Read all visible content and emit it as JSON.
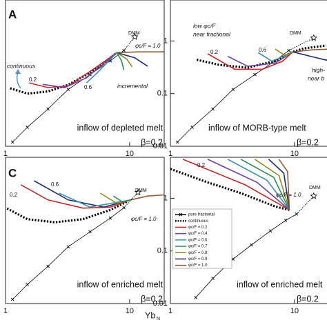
{
  "chart_data": [
    {
      "type": "line",
      "xlog": true,
      "ylog": true,
      "xlim": [
        1,
        19
      ],
      "ylim": [
        0.01,
        6
      ],
      "xticks": [
        1,
        10
      ],
      "annotations": [
        "A",
        "continuous",
        "0.2",
        "0.6",
        "incremental",
        "DMM",
        "φc/F = 1.0",
        "inflow of depleted melt",
        "β=0.2"
      ],
      "dmm": {
        "x": 11,
        "y": 1.2
      },
      "series": [
        {
          "color": "#000000",
          "marker": "x",
          "x": [
            1.14,
            1.5,
            2.2,
            3.2,
            4.8,
            7.0,
            9.0
          ],
          "values": [
            0.012,
            0.023,
            0.051,
            0.12,
            0.23,
            0.42,
            0.66
          ]
        },
        {
          "color": "#000000",
          "dash": "dotted",
          "x": [
            1.09,
            1.5,
            2.2,
            3.2,
            4.8,
            6.4,
            7.9
          ],
          "values": [
            0.126,
            0.1,
            0.11,
            0.147,
            0.25,
            0.4,
            0.6
          ]
        },
        {
          "color": "#c0282d",
          "x": [
            1.55,
            2.2,
            3.2,
            5.2,
            7.9
          ],
          "values": [
            0.16,
            0.13,
            0.14,
            0.3,
            0.6
          ]
        },
        {
          "color": "#6a3d9a",
          "x": [
            2.0,
            3.0,
            4.5,
            7.9
          ],
          "values": [
            0.15,
            0.13,
            0.2,
            0.6
          ]
        },
        {
          "color": "#3a8fa5",
          "x": [
            4.5,
            5.5,
            7.9
          ],
          "values": [
            0.16,
            0.25,
            0.6
          ]
        },
        {
          "color": "#8b5a3c",
          "x": [
            7.9,
            12,
            19
          ],
          "values": [
            0.6,
            0.62,
            0.62
          ]
        },
        {
          "color": "#1f2a6b",
          "x": [
            7.9,
            11,
            14
          ],
          "values": [
            0.6,
            0.48,
            0.33
          ]
        },
        {
          "color": "#8b8b2a",
          "x": [
            7.9,
            9.5,
            10.5
          ],
          "values": [
            0.6,
            0.45,
            0.32
          ]
        },
        {
          "color": "#2e8b57",
          "x": [
            7.9,
            8.6,
            9.0
          ],
          "values": [
            0.6,
            0.42,
            0.28
          ]
        }
      ]
    },
    {
      "type": "line",
      "xlog": true,
      "ylog": true,
      "xlim": [
        1,
        19
      ],
      "ylim": [
        0.01,
        6
      ],
      "xticks": [
        1,
        10
      ],
      "yticks": [
        1,
        0.1,
        0.01
      ],
      "annotations": [
        "low φc/F",
        "near fractional",
        "0.2",
        "0.6",
        "high-",
        "near b",
        "DMM",
        "inflow of MORB-type melt",
        "β=0.2"
      ],
      "dmm": {
        "x": 14.3,
        "y": 1.14
      },
      "series": [
        {
          "color": "#000000",
          "marker": "x",
          "x": [
            1.14,
            1.5,
            2.2,
            3.2,
            4.8,
            7.0,
            9.0
          ],
          "values": [
            0.012,
            0.023,
            0.051,
            0.12,
            0.23,
            0.42,
            0.66
          ]
        },
        {
          "color": "#000000",
          "dash": "dotted",
          "x": [
            1.63,
            2.5,
            4.2,
            7,
            9.7,
            11.8,
            18
          ],
          "values": [
            0.44,
            0.35,
            0.31,
            0.42,
            0.62,
            0.72,
            0.82
          ]
        },
        {
          "color": "#c0282d",
          "x": [
            2.0,
            3.3,
            5.5,
            8,
            9.7
          ],
          "values": [
            0.57,
            0.29,
            0.29,
            0.41,
            0.62
          ]
        },
        {
          "color": "#6a3d9a",
          "x": [
            2.9,
            4.2,
            7,
            9.7
          ],
          "values": [
            0.51,
            0.33,
            0.38,
            0.62
          ]
        },
        {
          "color": "#3a8fa5",
          "x": [
            5.1,
            6.6,
            9.7
          ],
          "values": [
            0.6,
            0.41,
            0.62
          ]
        },
        {
          "color": "#8b8b2a",
          "x": [
            7,
            8.5,
            9.7
          ],
          "values": [
            0.7,
            0.52,
            0.62
          ]
        },
        {
          "color": "#8b5a3c",
          "x": [
            9.7,
            14,
            19
          ],
          "values": [
            0.62,
            0.68,
            0.7
          ]
        },
        {
          "color": "#1f2a6b",
          "x": [
            9.7,
            14,
            19
          ],
          "values": [
            0.62,
            0.5,
            0.42
          ]
        }
      ]
    },
    {
      "type": "line",
      "xlog": true,
      "ylog": true,
      "xlim": [
        1,
        19
      ],
      "ylim": [
        0.01,
        6
      ],
      "xticks": [
        1,
        10
      ],
      "annotations": [
        "C",
        "0.2",
        "0.6",
        "DMM",
        "φc/F = 1.0",
        "inflow of enriched melt",
        "β=0.2"
      ],
      "xlabel": "Yb",
      "xlabel_sub": "N",
      "dmm": {
        "x": 11.7,
        "y": 1.3
      },
      "series": [
        {
          "color": "#000000",
          "marker": "x",
          "x": [
            1.14,
            1.5,
            2.2,
            3.2,
            4.8,
            7.0,
            9.0
          ],
          "values": [
            0.012,
            0.023,
            0.051,
            0.12,
            0.23,
            0.42,
            0.66
          ]
        },
        {
          "color": "#000000",
          "dash": "dotted",
          "x": [
            1.03,
            1.5,
            2.5,
            4.2,
            7,
            9.6
          ],
          "values": [
            0.64,
            0.4,
            0.35,
            0.4,
            0.6,
            0.87
          ]
        },
        {
          "color": "#c0282d",
          "x": [
            1.33,
            2.2,
            4.2,
            7,
            10.2
          ],
          "values": [
            1.8,
            0.93,
            0.65,
            0.68,
            0.93
          ]
        },
        {
          "color": "#1f2a6b",
          "x": [
            1.7,
            3.2,
            6.2,
            10.2
          ],
          "values": [
            2.15,
            0.93,
            0.68,
            0.93
          ]
        },
        {
          "color": "#3a8fa5",
          "x": [
            2.7,
            4.8,
            10.2
          ],
          "values": [
            1.25,
            0.68,
            0.93
          ]
        },
        {
          "color": "#8b8b2a",
          "x": [
            5.8,
            7.9,
            10.2
          ],
          "values": [
            1.25,
            0.8,
            0.93
          ]
        },
        {
          "color": "#2e8b57",
          "x": [
            7.4,
            8.8,
            10.2
          ],
          "values": [
            1.1,
            0.85,
            0.93
          ]
        },
        {
          "color": "#8b5a3c",
          "x": [
            10.2,
            14,
            19
          ],
          "values": [
            0.93,
            1.1,
            1.16
          ]
        }
      ]
    },
    {
      "type": "line",
      "xlog": true,
      "ylog": true,
      "xlim": [
        1,
        19
      ],
      "ylim": [
        0.01,
        6
      ],
      "xticks": [
        1,
        10
      ],
      "yticks": [
        1,
        0.1,
        0.01
      ],
      "annotations": [
        "0.2",
        "φc/F = 1.0",
        "DMM",
        "inflow of enriched melt",
        "β=0.2"
      ],
      "dmm": {
        "x": 14.3,
        "y": 1.1
      },
      "legend": true,
      "series": [
        {
          "name": "pure fractional",
          "color": "#000000",
          "marker": "x",
          "x": [
            1.6,
            2.2,
            3.2,
            4.5,
            6.4,
            8.5,
            10.4
          ],
          "values": [
            0.013,
            0.03,
            0.07,
            0.13,
            0.24,
            0.38,
            0.5
          ]
        },
        {
          "name": "continuous",
          "color": "#000000",
          "dash": "dotted",
          "x": [
            1,
            2,
            3.7,
            7.1,
            9.1
          ],
          "values": [
            3.6,
            2.0,
            1.25,
            0.69,
            0.6
          ]
        },
        {
          "name": "φc/F = 0.2",
          "color": "#c0282d",
          "x": [
            1.26,
            4,
            9.1
          ],
          "values": [
            5.5,
            1.8,
            0.6
          ]
        },
        {
          "name": "φc/F = 0.4",
          "color": "#6a3d9a",
          "x": [
            2,
            5,
            9.1
          ],
          "values": [
            5.5,
            2.0,
            0.6
          ]
        },
        {
          "name": "φc/F = 0.6",
          "color": "#3a8fa5",
          "x": [
            2.9,
            6,
            9.1
          ],
          "values": [
            5.5,
            2.2,
            0.6
          ]
        },
        {
          "name": "φc/F = 0.7",
          "color": "#2e8b57",
          "x": [
            3.7,
            6.8,
            9.1
          ],
          "values": [
            5.5,
            2.5,
            0.6
          ]
        },
        {
          "name": "φc/F = 0.8",
          "color": "#8b8b2a",
          "x": [
            4.8,
            7.5,
            9.1
          ],
          "values": [
            5.5,
            2.7,
            0.6
          ]
        },
        {
          "name": "φc/F = 0.9",
          "color": "#1f2a6b",
          "x": [
            6.2,
            8.2,
            9.1
          ],
          "values": [
            5.5,
            3.0,
            0.6
          ]
        },
        {
          "name": "φc/F = 1.0",
          "color": "#8b5a3c",
          "x": [
            7.5,
            8.8,
            9.1
          ],
          "values": [
            5.5,
            3.2,
            0.6
          ]
        }
      ]
    }
  ]
}
